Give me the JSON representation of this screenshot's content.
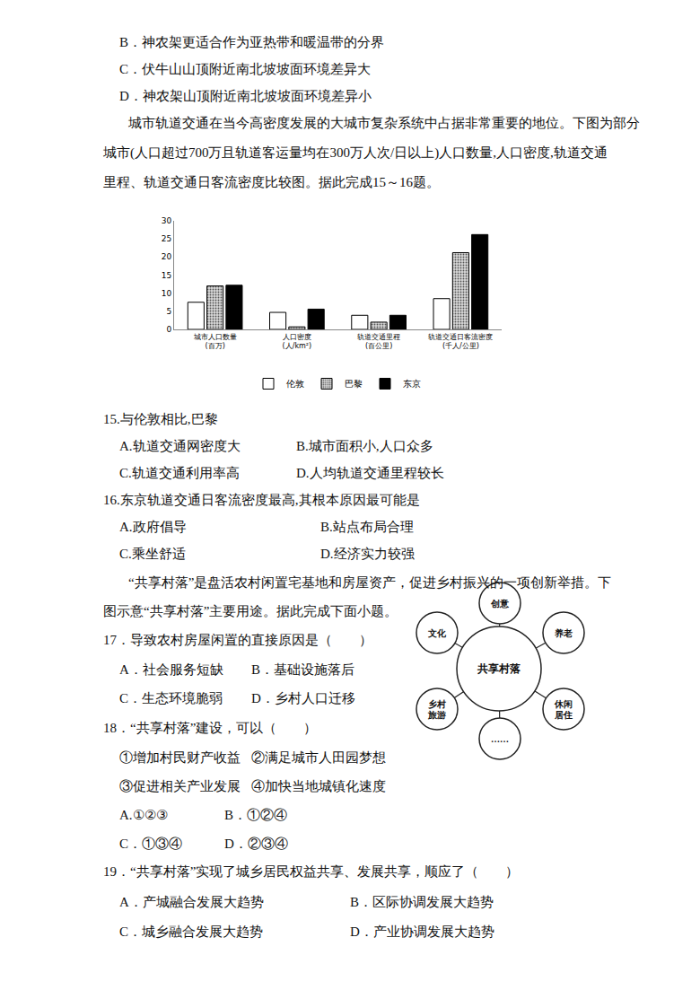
{
  "document": {
    "previous_options": [
      "B．神农架更适合作为亚热带和暖温带的分界",
      "C．伏牛山山顶附近南北坡坡面环境差异大",
      "D．神农架山顶附近南北坡坡面环境差异小"
    ],
    "intro_1": [
      "城市轨道交通在当今高密度发展的大城市复杂系统中占据非常重要的地位。下图为部分",
      "城市(人口超过700万且轨道客运量均在300万人次/日以上)人口数量,人口密度,轨道交通",
      "里程、轨道交通日客流密度比较图。据此完成15～16题。"
    ],
    "q15": {
      "stem": "15.与伦敦相比,巴黎",
      "options": [
        "A.轨道交通网密度大",
        "B.城市面积小,人口众多",
        "C.轨道交通利用率高",
        "D.人均轨道交通里程较长"
      ]
    },
    "q16": {
      "stem": "16.东京轨道交通日客流密度最高,其根本原因最可能是",
      "options": [
        "A.政府倡导",
        "B.站点布局合理",
        "C.乘坐舒适",
        "D.经济实力较强"
      ]
    },
    "intro_2": [
      "“共享村落”是盘活农村闲置宅基地和房屋资产，促进乡村振兴的一项创新举措。下",
      "图示意“共享村落”主要用途。据此完成下面小题。"
    ],
    "diagram": {
      "center": "共享村落",
      "nodes": [
        "创意",
        "养老",
        "休闲\n居住",
        "……",
        "乡村\n旅游",
        "文化"
      ]
    },
    "q17": {
      "stem": "17．导致农村房屋闲置的直接原因是（　　）",
      "options": [
        "A．社会服务短缺",
        "B．基础设施落后",
        "C．生态环境脆弱",
        "D．乡村人口迁移"
      ]
    },
    "q18": {
      "stem": "18．“共享村落”建设，可以（　　）",
      "statements": [
        "①增加村民财产收益",
        "②满足城市人田园梦想",
        "③促进相关产业发展",
        "④加快当地城镇化速度"
      ],
      "options": [
        "A.①②③",
        "B．①②④",
        "C．①③④",
        "D．②③④"
      ]
    },
    "q19": {
      "stem": "19．“共享村落”实现了城乡居民权益共享、发展共享，顺应了（　　）",
      "options": [
        "A．产城融合发展大趋势",
        "B．区际协调发展大趋势",
        "C．城乡融合发展大趋势",
        "D．产业协调发展大趋势"
      ]
    }
  },
  "chart_data": {
    "type": "bar",
    "categories": [
      "城市人口数量\n(百万)",
      "人口密度\n(人/km²)",
      "轨道交通里程\n(百公里)",
      "轨道交通日客流密度\n(千人/公里)"
    ],
    "series": [
      {
        "name": "伦敦",
        "color": "#ffffff",
        "values": [
          7.5,
          4.7,
          3.9,
          8.5
        ]
      },
      {
        "name": "巴黎",
        "color": "#d9d9d9",
        "values": [
          12,
          0.7,
          2,
          21.2
        ]
      },
      {
        "name": "东京",
        "color": "#000000",
        "values": [
          12.2,
          5.6,
          3.9,
          26.2
        ]
      }
    ],
    "ylim": [
      0,
      30
    ],
    "yticks": [
      0,
      5,
      10,
      15,
      20,
      25,
      30
    ],
    "grid": false,
    "legend": "bottom"
  }
}
